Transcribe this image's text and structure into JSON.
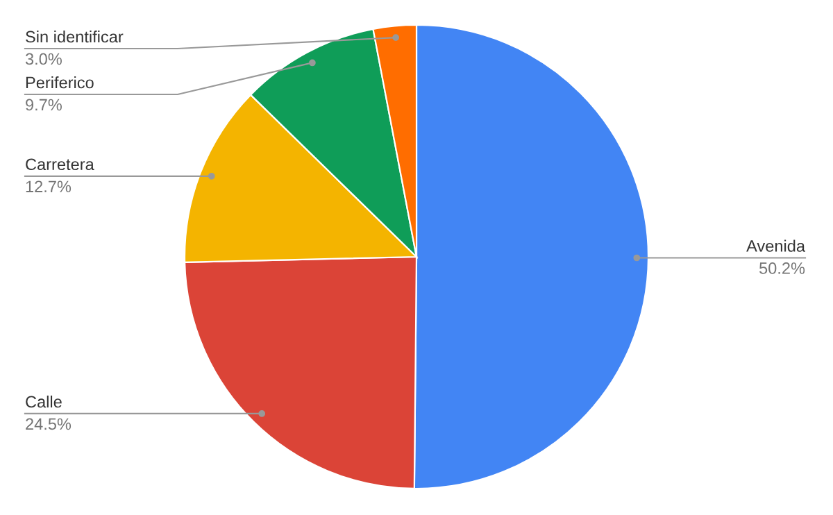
{
  "chart_data": {
    "type": "pie",
    "categories": [
      "Avenida",
      "Calle",
      "Carretera",
      "Periferico",
      "Sin identificar"
    ],
    "values": [
      50.2,
      24.5,
      12.7,
      9.7,
      3.0
    ],
    "colors": [
      "#4285f4",
      "#db4437",
      "#f4b400",
      "#0f9d58",
      "#ff6d00"
    ],
    "value_labels": [
      "50.2%",
      "24.5%",
      "12.7%",
      "9.7%",
      "3.0%"
    ]
  }
}
